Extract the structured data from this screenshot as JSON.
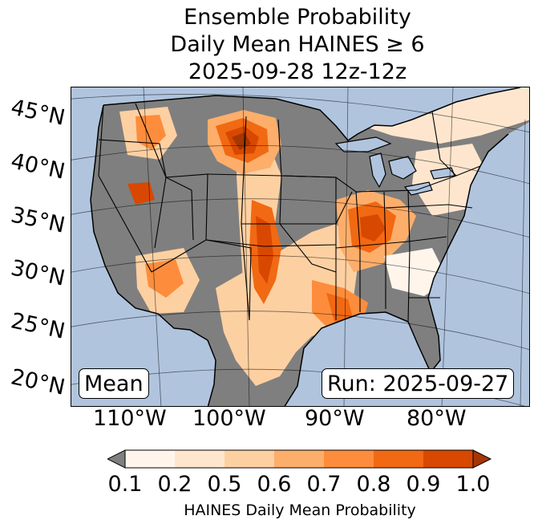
{
  "title": {
    "line1": "Ensemble Probability",
    "line2": "Daily Mean HAINES ≥ 6",
    "line3": "2025-09-28 12z-12z"
  },
  "map": {
    "region": "Contiguous United States",
    "latitude_labels": [
      "45°N",
      "40°N",
      "35°N",
      "30°N",
      "25°N",
      "20°N"
    ],
    "longitude_labels": [
      "110°W",
      "100°W",
      "90°W",
      "80°W"
    ],
    "mean_label": "Mean",
    "run_label": "Run: 2025-09-27",
    "colors": {
      "ocean": "#b0c4de",
      "below_threshold": "#7f7f7f"
    }
  },
  "colorbar": {
    "title": "HAINES Daily Mean Probability",
    "ticks": [
      "0.1",
      "0.2",
      "0.5",
      "0.6",
      "0.7",
      "0.8",
      "0.9",
      "1.0"
    ],
    "colors": [
      "#fff5eb",
      "#fee6ce",
      "#fdd0a2",
      "#fdae6b",
      "#fd8d3c",
      "#f16913",
      "#d94801",
      "#a63603"
    ],
    "under_color": "#7f7f7f"
  }
}
